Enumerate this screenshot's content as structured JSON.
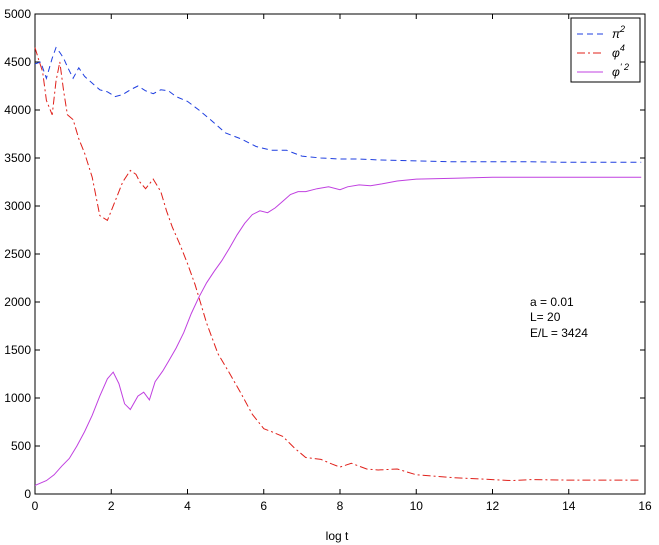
{
  "chart_data": {
    "type": "line",
    "title": "",
    "xlabel": "log  t",
    "ylabel": "",
    "xlim": [
      0,
      16
    ],
    "ylim": [
      0,
      5000
    ],
    "xticks": [
      0,
      2,
      4,
      6,
      8,
      10,
      12,
      14,
      16
    ],
    "yticks": [
      0,
      500,
      1000,
      1500,
      2000,
      2500,
      3000,
      3500,
      4000,
      4500,
      5000
    ],
    "grid": false,
    "legend_position": "top-right",
    "annotation": [
      "a = 0.01",
      "L= 20",
      "E/L = 3424"
    ],
    "series": [
      {
        "name": "π²",
        "legend_base": "π",
        "legend_sup": "2",
        "color": "#1f3fe0",
        "dash": "6,4",
        "x": [
          0,
          0.15,
          0.3,
          0.45,
          0.55,
          0.65,
          0.75,
          0.85,
          1.0,
          1.15,
          1.3,
          1.5,
          1.7,
          1.9,
          2.1,
          2.3,
          2.5,
          2.7,
          2.9,
          3.1,
          3.3,
          3.5,
          3.7,
          4.0,
          4.3,
          4.6,
          5.0,
          5.4,
          5.8,
          6.2,
          6.6,
          7.0,
          7.5,
          8.0,
          8.5,
          9.0,
          10.0,
          11.0,
          12.0,
          13.0,
          14.0,
          15.0,
          15.9
        ],
        "y": [
          4480,
          4500,
          4330,
          4540,
          4650,
          4600,
          4540,
          4450,
          4330,
          4440,
          4350,
          4280,
          4210,
          4190,
          4140,
          4160,
          4210,
          4250,
          4200,
          4170,
          4210,
          4200,
          4140,
          4090,
          4000,
          3900,
          3760,
          3700,
          3620,
          3580,
          3580,
          3520,
          3500,
          3490,
          3490,
          3480,
          3470,
          3460,
          3460,
          3460,
          3455,
          3455,
          3455
        ]
      },
      {
        "name": "φ⁴",
        "legend_base": "φ",
        "legend_sup": "4",
        "color": "#e0201a",
        "dash": "8,3,2,3",
        "x": [
          0,
          0.1,
          0.2,
          0.3,
          0.45,
          0.55,
          0.65,
          0.75,
          0.85,
          1.0,
          1.15,
          1.3,
          1.5,
          1.7,
          1.9,
          2.1,
          2.3,
          2.5,
          2.65,
          2.75,
          2.9,
          3.1,
          3.3,
          3.45,
          3.6,
          3.8,
          4.0,
          4.2,
          4.5,
          4.8,
          5.1,
          5.4,
          5.7,
          6.0,
          6.2,
          6.5,
          6.8,
          7.1,
          7.5,
          7.8,
          8.0,
          8.3,
          8.7,
          9.0,
          9.5,
          10.0,
          11.0,
          12.0,
          12.5,
          13.0,
          14.0,
          15.0,
          15.9
        ],
        "y": [
          4650,
          4520,
          4400,
          4100,
          3950,
          4300,
          4500,
          4200,
          3950,
          3900,
          3700,
          3550,
          3300,
          2900,
          2850,
          3050,
          3250,
          3370,
          3330,
          3250,
          3180,
          3280,
          3150,
          2950,
          2780,
          2600,
          2400,
          2180,
          1780,
          1460,
          1260,
          1050,
          830,
          680,
          650,
          600,
          480,
          380,
          360,
          310,
          280,
          320,
          260,
          250,
          260,
          200,
          170,
          150,
          140,
          150,
          145,
          145,
          145
        ]
      },
      {
        "name": "φ'²",
        "legend_base": "φ",
        "legend_sup": "' 2",
        "color": "#c040e0",
        "dash": "",
        "x": [
          0,
          0.3,
          0.5,
          0.7,
          0.9,
          1.1,
          1.3,
          1.5,
          1.7,
          1.9,
          2.05,
          2.2,
          2.35,
          2.5,
          2.7,
          2.85,
          3.0,
          3.15,
          3.35,
          3.5,
          3.7,
          3.9,
          4.1,
          4.3,
          4.5,
          4.7,
          4.9,
          5.1,
          5.3,
          5.5,
          5.7,
          5.9,
          6.1,
          6.3,
          6.5,
          6.7,
          6.9,
          7.1,
          7.4,
          7.7,
          8.0,
          8.2,
          8.5,
          8.8,
          9.1,
          9.5,
          10.0,
          11.0,
          12.0,
          12.5,
          13.0,
          14.0,
          15.0,
          15.9
        ],
        "y": [
          90,
          140,
          200,
          290,
          370,
          500,
          650,
          820,
          1020,
          1200,
          1270,
          1150,
          940,
          880,
          1020,
          1060,
          980,
          1170,
          1280,
          1380,
          1520,
          1680,
          1880,
          2050,
          2200,
          2320,
          2430,
          2560,
          2700,
          2820,
          2910,
          2950,
          2930,
          2980,
          3050,
          3120,
          3150,
          3150,
          3180,
          3200,
          3170,
          3200,
          3220,
          3210,
          3230,
          3260,
          3280,
          3290,
          3300,
          3300,
          3300,
          3300,
          3300,
          3300
        ]
      }
    ]
  }
}
